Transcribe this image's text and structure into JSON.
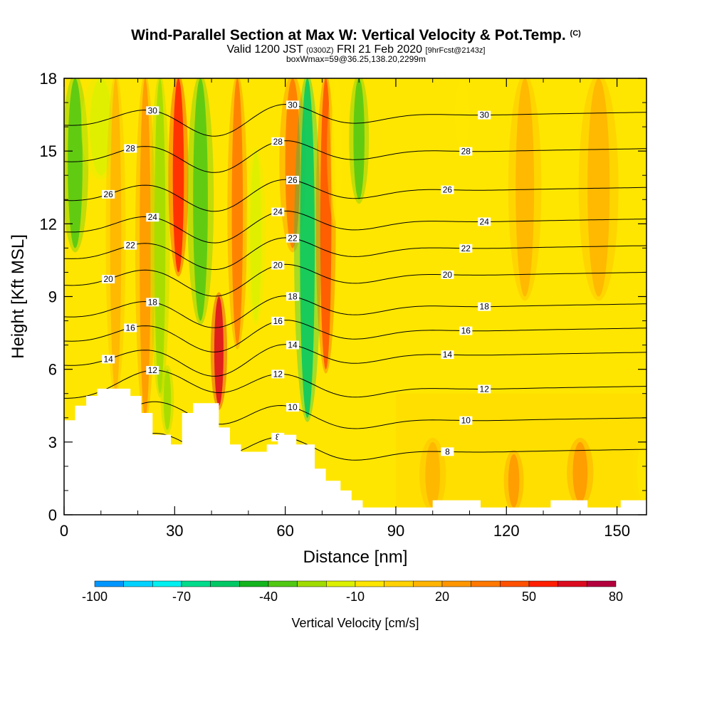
{
  "header": {
    "title": "Wind-Parallel Section at Max W: Vertical Velocity & Pot.Temp.",
    "copyright": "(C)",
    "valid_prefix": "Valid 1200 JST",
    "valid_utc": "(0300Z)",
    "valid_date": "FRI 21 Feb 2020",
    "forecast": "[9hrFcst@2143z]",
    "box_info": "boxWmax=59@36.25,138.20,2299m"
  },
  "chart_data": {
    "type": "heatmap",
    "xlabel": "Distance [nm]",
    "ylabel": "Height [Kft MSL]",
    "xlim": [
      0,
      158
    ],
    "ylim": [
      0,
      18
    ],
    "x_ticks": [
      "0",
      "30",
      "60",
      "90",
      "120",
      "150"
    ],
    "y_ticks": [
      "0",
      "3",
      "6",
      "9",
      "12",
      "15",
      "18"
    ],
    "colorbar": {
      "title": "Vertical Velocity [cm/s]",
      "labels": [
        "-100",
        "-70",
        "-40",
        "-10",
        "20",
        "50",
        "80"
      ],
      "min": -100,
      "max": 80,
      "step": 10,
      "colors": [
        "#1414ff",
        "#0a46ff",
        "#0096ff",
        "#00d2ff",
        "#00f0f0",
        "#00dc8c",
        "#00c864",
        "#14b41e",
        "#50c814",
        "#a0dc00",
        "#dcf000",
        "#ffe600",
        "#ffd200",
        "#ffb400",
        "#ff9600",
        "#ff7800",
        "#ff5000",
        "#ff1e00",
        "#dc0a1e",
        "#b4003c",
        "#8c0050",
        "#500078"
      ]
    },
    "terrain": [
      [
        0,
        3.9
      ],
      [
        3,
        3.9
      ],
      [
        3,
        4.5
      ],
      [
        6,
        4.5
      ],
      [
        6,
        4.9
      ],
      [
        9,
        4.9
      ],
      [
        9,
        5.2
      ],
      [
        18,
        5.2
      ],
      [
        18,
        4.9
      ],
      [
        21,
        4.9
      ],
      [
        21,
        4.2
      ],
      [
        24,
        4.2
      ],
      [
        24,
        3.3
      ],
      [
        29,
        3.3
      ],
      [
        29,
        2.9
      ],
      [
        32,
        2.9
      ],
      [
        32,
        4.2
      ],
      [
        35,
        4.2
      ],
      [
        35,
        4.6
      ],
      [
        42,
        4.6
      ],
      [
        42,
        3.6
      ],
      [
        45,
        3.6
      ],
      [
        45,
        2.9
      ],
      [
        48,
        2.9
      ],
      [
        48,
        2.6
      ],
      [
        55,
        2.6
      ],
      [
        55,
        2.9
      ],
      [
        58,
        2.9
      ],
      [
        58,
        3.3
      ],
      [
        63,
        3.3
      ],
      [
        63,
        2.9
      ],
      [
        68,
        2.9
      ],
      [
        68,
        1.9
      ],
      [
        71,
        1.9
      ],
      [
        71,
        1.4
      ],
      [
        75,
        1.4
      ],
      [
        75,
        1.0
      ],
      [
        78,
        1.0
      ],
      [
        78,
        0.6
      ],
      [
        81,
        0.6
      ],
      [
        81,
        0.3
      ],
      [
        100,
        0.3
      ],
      [
        100,
        0.6
      ],
      [
        113,
        0.6
      ],
      [
        113,
        0.3
      ],
      [
        132,
        0.3
      ],
      [
        132,
        0.6
      ],
      [
        142,
        0.6
      ],
      [
        142,
        0.3
      ],
      [
        151,
        0.3
      ],
      [
        151,
        0.6
      ],
      [
        158,
        0.6
      ],
      [
        158,
        0
      ]
    ],
    "updraft_bands": [
      {
        "x": 3,
        "w": 4,
        "ytop": 18,
        "ybot": 11,
        "value": -40
      },
      {
        "x": 10,
        "w": 6,
        "ytop": 18,
        "ybot": 14,
        "value": -20
      },
      {
        "x": 14,
        "w": 3,
        "ytop": 18,
        "ybot": 5,
        "value": 15
      },
      {
        "x": 22,
        "w": 3,
        "ytop": 18,
        "ybot": 4,
        "value": 25
      },
      {
        "x": 26,
        "w": 3,
        "ytop": 18,
        "ybot": 5,
        "value": -30
      },
      {
        "x": 31,
        "w": 3,
        "ytop": 18,
        "ybot": 10,
        "value": 50
      },
      {
        "x": 37,
        "w": 4,
        "ytop": 18,
        "ybot": 8,
        "value": -35
      },
      {
        "x": 42,
        "w": 2.5,
        "ytop": 9,
        "ybot": 4.5,
        "value": 60
      },
      {
        "x": 47,
        "w": 3,
        "ytop": 18,
        "ybot": 7,
        "value": 30
      },
      {
        "x": 52,
        "w": 3,
        "ytop": 15,
        "ybot": 8,
        "value": -15
      },
      {
        "x": 62,
        "w": 4,
        "ytop": 18,
        "ybot": 11,
        "value": 30
      },
      {
        "x": 66,
        "w": 4,
        "ytop": 18,
        "ybot": 4,
        "value": -60
      },
      {
        "x": 71,
        "w": 3,
        "ytop": 18,
        "ybot": 6,
        "value": 40
      },
      {
        "x": 74,
        "w": 3,
        "ytop": 18,
        "ybot": 12,
        "value": -10
      },
      {
        "x": 80,
        "w": 3,
        "ytop": 18,
        "ybot": 13,
        "value": -40
      },
      {
        "x": 28,
        "w": 2,
        "ytop": 6,
        "ybot": 3.5,
        "value": -30
      },
      {
        "x": 108,
        "w": 4,
        "ytop": 18,
        "ybot": 15,
        "value": -10
      },
      {
        "x": 125,
        "w": 5,
        "ytop": 18,
        "ybot": 9,
        "value": 15
      },
      {
        "x": 145,
        "w": 6,
        "ytop": 18,
        "ybot": 9,
        "value": 15
      },
      {
        "x": 100,
        "w": 4,
        "ytop": 3,
        "ybot": 0.3,
        "value": 15
      },
      {
        "x": 122,
        "w": 3,
        "ytop": 2.5,
        "ybot": 0.3,
        "value": 25
      },
      {
        "x": 140,
        "w": 4,
        "ytop": 3,
        "ybot": 0.5,
        "value": 20
      },
      {
        "x": 157,
        "w": 3,
        "ytop": 3,
        "ybot": 0.6,
        "value": -10
      }
    ],
    "theta_contours": [
      {
        "label": "8",
        "y": 2.6
      },
      {
        "label": "10",
        "y": 3.9
      },
      {
        "label": "12",
        "y": 5.2
      },
      {
        "label": "14",
        "y": 6.6
      },
      {
        "label": "16",
        "y": 7.6
      },
      {
        "label": "18",
        "y": 8.6
      },
      {
        "label": "20",
        "y": 9.9
      },
      {
        "label": "22",
        "y": 11.0
      },
      {
        "label": "24",
        "y": 12.1
      },
      {
        "label": "26",
        "y": 13.4
      },
      {
        "label": "28",
        "y": 15.0
      },
      {
        "label": "30",
        "y": 16.5
      }
    ]
  }
}
